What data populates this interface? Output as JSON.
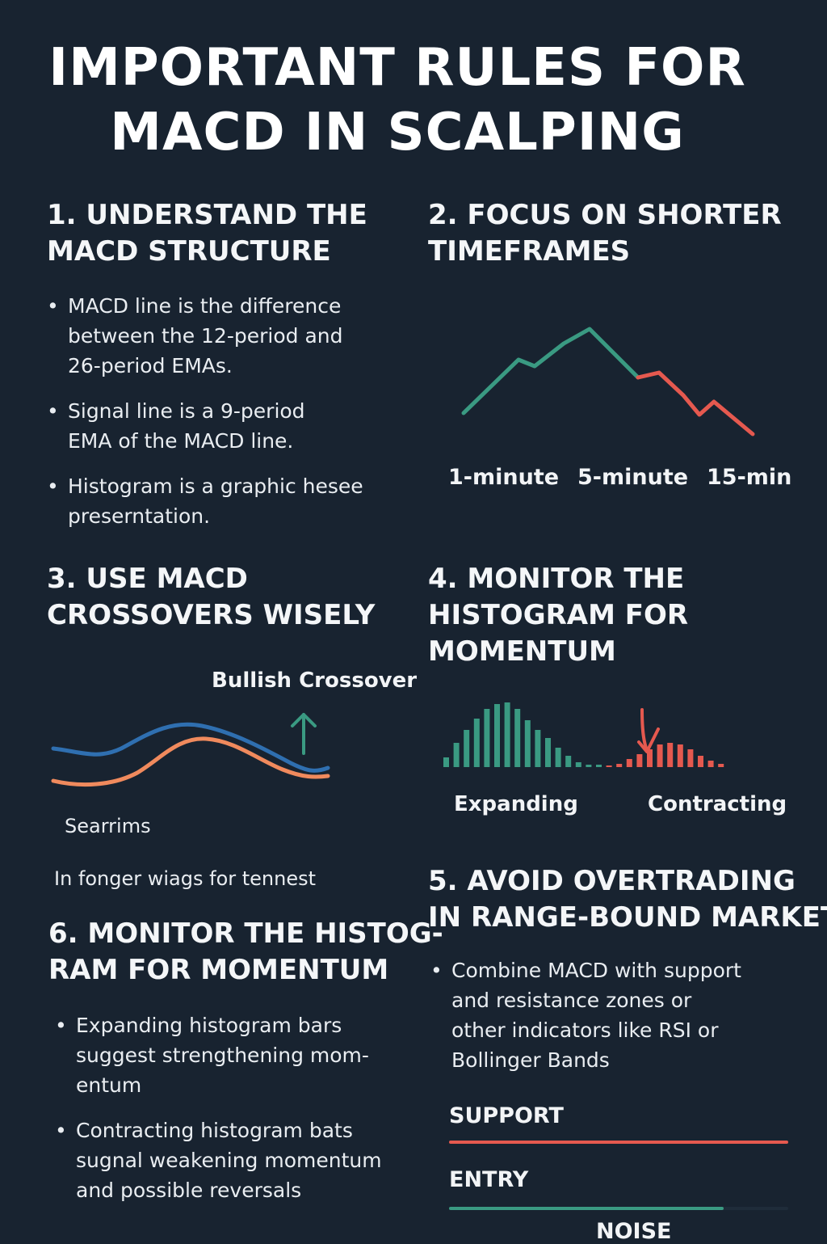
{
  "title": {
    "line1": "IMPORTANT RULES FOR",
    "line2": "MACD IN SCALPING"
  },
  "section1": {
    "heading_line1": "1. UNDERSTAND THE",
    "heading_line2": "MACD STRUCTURE",
    "bullets": [
      "MACD line is the difference\nbetween the 12-period and\n26-period EMAs.",
      "Signal line is a 9-period\nEMA of the MACD line.",
      "Histogram is a graphic hesee\npreserntation."
    ]
  },
  "section2": {
    "heading_line1": "2. FOCUS ON SHORTER",
    "heading_line2": "TIMEFRAMES",
    "timeframes": [
      "1-minute",
      "5-minute",
      "15-min"
    ],
    "colors": {
      "up": "#3a9a82",
      "down": "#e5594f"
    }
  },
  "section3": {
    "heading_line1": "3. USE MACD",
    "heading_line2": "CROSSOVERS WISELY",
    "crossover_label": "Bullish Crossover",
    "caption": "Searrims",
    "note": "In fonger wiags for tennest",
    "colors": {
      "macd": "#2f6fb0",
      "signal": "#f08a5d",
      "arrow": "#3a9a82"
    }
  },
  "section4": {
    "heading_line1": "4. MONITOR THE",
    "heading_line2": "HISTOGRAM FOR",
    "heading_line3": "MOMENTUM",
    "expanding_label": "Expanding",
    "contracting_label": "Contracting",
    "colors": {
      "positive": "#3a9a82",
      "negative": "#e5594f"
    }
  },
  "section5": {
    "heading_line1": "5. AVOID OVERTRADING",
    "heading_line2": "IN RANGE-BOUND MARKETS",
    "bullets": [
      "Combine MACD with support\nand resistance zones or\nother indicators like RSI or\nBollinger Bands"
    ],
    "support_label": "SUPPORT",
    "entry_label": "ENTRY",
    "noise_label": "NOISE",
    "colors": {
      "support": "#e5594f",
      "entry": "#3a9a82"
    }
  },
  "section6": {
    "heading_line1": "6. MONITOR THE HISTOG-",
    "heading_line2": "RAM FOR MOMENTUM",
    "bullets": [
      "Expanding histogram bars\nsuggest strengthening mom-\nentum",
      "Contracting histogram bats\nsugnal weakening momentum\nand possible reversals"
    ]
  }
}
